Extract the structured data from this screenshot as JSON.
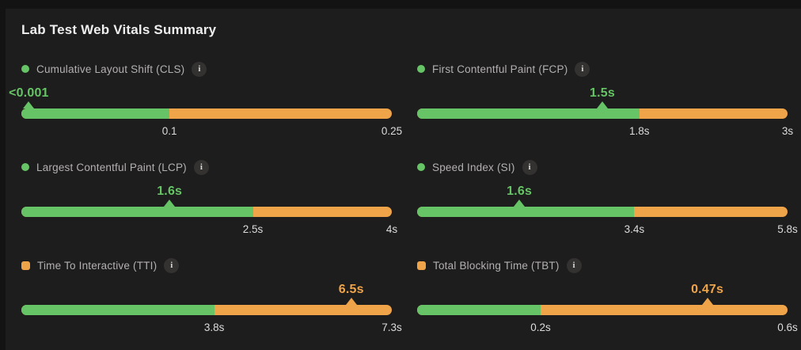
{
  "page": {
    "title": "Lab Test Web Vitals Summary"
  },
  "colors": {
    "good": "#66c466",
    "warn": "#efa44a",
    "page_background": "#141313",
    "card_background": "#1e1d1d",
    "title_text": "#efeeee",
    "label_text": "#b3b0b0",
    "tick_text": "#dcdada"
  },
  "info_icon": {
    "glyph": "i"
  },
  "chart_data": {
    "type": "bar",
    "subtype": "bullet-gauge-dashboard",
    "title": "Lab Test Web Vitals Summary",
    "legend": "green segment = good range up to threshold tick, orange segment = needs-improvement range up to axis max; triangle marks measured value",
    "metrics": [
      {
        "name": "Cumulative Layout Shift (CLS)",
        "display_value": "<0.001",
        "numeric_value": 0.001,
        "good_threshold": 0.1,
        "axis_max": 0.25,
        "threshold_tick_label": "0.1",
        "max_tick_label": "0.25",
        "status": "good",
        "indicator_shape": "circle"
      },
      {
        "name": "First Contentful Paint (FCP)",
        "display_value": "1.5s",
        "numeric_value": 1.5,
        "good_threshold": 1.8,
        "axis_max": 3,
        "threshold_tick_label": "1.8s",
        "max_tick_label": "3s",
        "status": "good",
        "indicator_shape": "circle"
      },
      {
        "name": "Largest Contentful Paint (LCP)",
        "display_value": "1.6s",
        "numeric_value": 1.6,
        "good_threshold": 2.5,
        "axis_max": 4,
        "threshold_tick_label": "2.5s",
        "max_tick_label": "4s",
        "status": "good",
        "indicator_shape": "circle"
      },
      {
        "name": "Speed Index (SI)",
        "display_value": "1.6s",
        "numeric_value": 1.6,
        "good_threshold": 3.4,
        "axis_max": 5.8,
        "threshold_tick_label": "3.4s",
        "max_tick_label": "5.8s",
        "status": "good",
        "indicator_shape": "circle"
      },
      {
        "name": "Time To Interactive (TTI)",
        "display_value": "6.5s",
        "numeric_value": 6.5,
        "good_threshold": 3.8,
        "axis_max": 7.3,
        "threshold_tick_label": "3.8s",
        "max_tick_label": "7.3s",
        "status": "warn",
        "indicator_shape": "square"
      },
      {
        "name": "Total Blocking Time (TBT)",
        "display_value": "0.47s",
        "numeric_value": 0.47,
        "good_threshold": 0.2,
        "axis_max": 0.6,
        "threshold_tick_label": "0.2s",
        "max_tick_label": "0.6s",
        "status": "warn",
        "indicator_shape": "square"
      }
    ]
  }
}
